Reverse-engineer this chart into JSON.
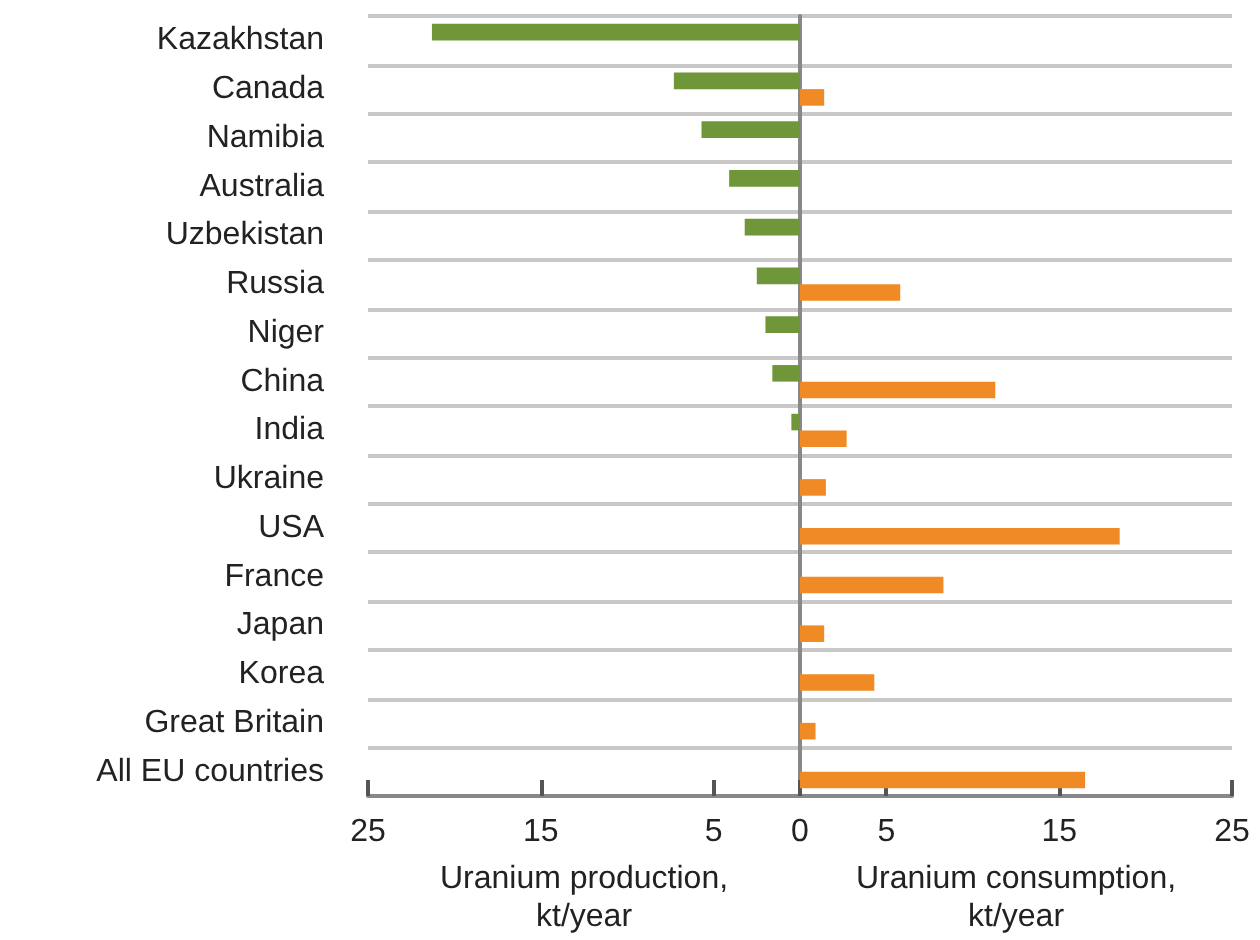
{
  "chart_data": {
    "type": "bar",
    "orientation": "horizontal",
    "categories": [
      "Kazakhstan",
      "Canada",
      "Namibia",
      "Australia",
      "Uzbekistan",
      "Russia",
      "Niger",
      "China",
      "India",
      "Ukraine",
      "USA",
      "France",
      "Japan",
      "Korea",
      "Great Britain",
      "All EU countries"
    ],
    "series": [
      {
        "color": "#70963a",
        "values": [
          -21.3,
          -7.3,
          -5.7,
          -4.1,
          -3.2,
          -2.5,
          -2.0,
          -1.6,
          -0.5,
          null,
          null,
          null,
          null,
          null,
          null,
          null
        ]
      },
      {
        "color": "#f08a24",
        "values": [
          null,
          1.4,
          null,
          null,
          null,
          5.8,
          null,
          11.3,
          2.7,
          1.5,
          18.5,
          8.3,
          1.4,
          4.3,
          0.9,
          16.5
        ]
      }
    ],
    "xlim": [
      -25,
      25
    ],
    "xticks": [
      {
        "value": -25,
        "label": "25"
      },
      {
        "value": -15,
        "label": "15"
      },
      {
        "value": -5,
        "label": "5"
      },
      0,
      5,
      15,
      25
    ],
    "xlabel": "Uranium production, kt/year",
    "annotations": [
      "Uranium consumption, kt/year"
    ],
    "grid": "y"
  }
}
